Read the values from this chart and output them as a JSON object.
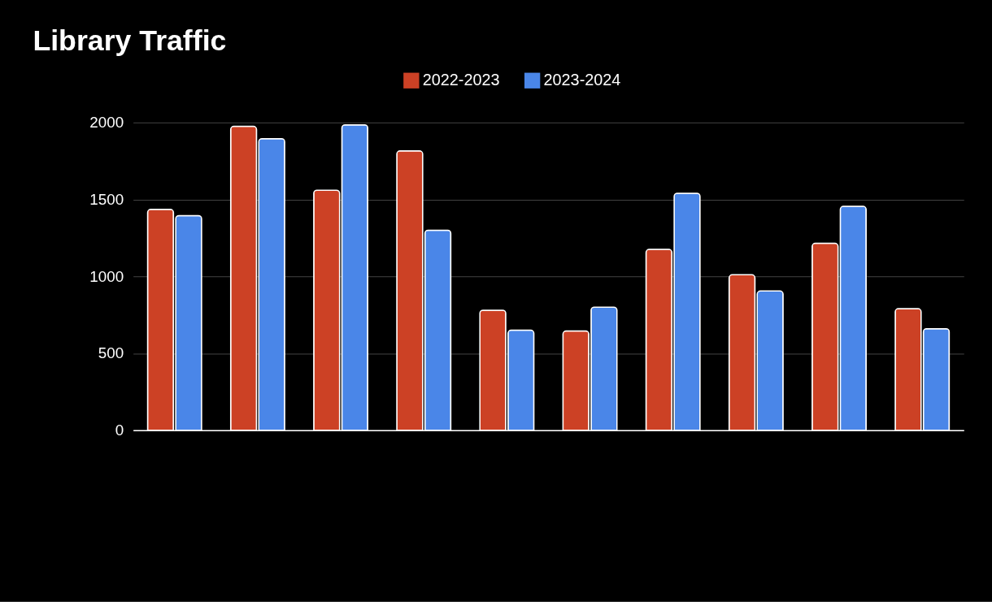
{
  "chart_data": {
    "type": "bar",
    "title": "Library Traffic",
    "categories": [
      null,
      null,
      null,
      null,
      null,
      null,
      null,
      null,
      null,
      null
    ],
    "series": [
      {
        "name": "2022-2023",
        "color": "#cc4125",
        "values": [
          1435,
          1975,
          1560,
          1815,
          780,
          645,
          1175,
          1010,
          1215,
          790
        ]
      },
      {
        "name": "2023-2024",
        "color": "#4a86e8",
        "values": [
          1395,
          1895,
          1985,
          1300,
          650,
          800,
          1540,
          905,
          1455,
          660
        ]
      }
    ],
    "ylim": [
      0,
      2000
    ],
    "yticks": [
      0,
      500,
      1000,
      1500,
      2000
    ],
    "grid": "y",
    "legend": "top",
    "tick_labels": "y"
  }
}
